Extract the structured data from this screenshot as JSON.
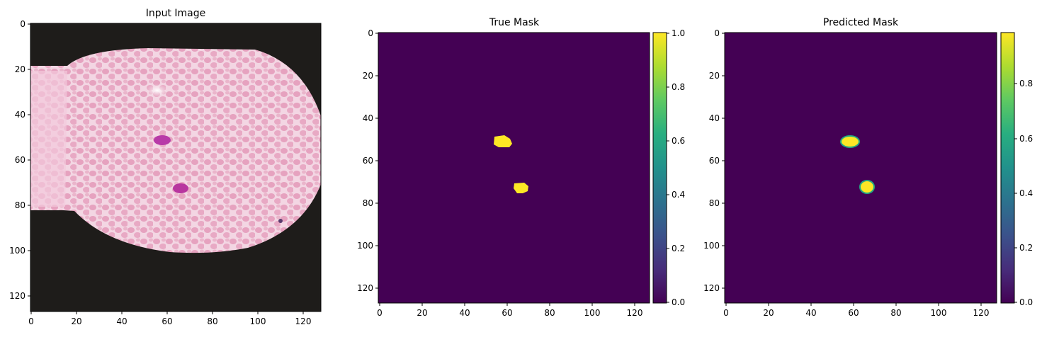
{
  "panels": [
    {
      "title": "Input Image",
      "x_ticks": [
        "0",
        "20",
        "40",
        "60",
        "80",
        "100",
        "120"
      ],
      "y_ticks": [
        "0",
        "20",
        "40",
        "60",
        "80",
        "100",
        "120"
      ]
    },
    {
      "title": "True Mask",
      "x_ticks": [
        "0",
        "20",
        "40",
        "60",
        "80",
        "100",
        "120"
      ],
      "y_ticks": [
        "0",
        "20",
        "40",
        "60",
        "80",
        "100",
        "120"
      ],
      "colorbar_ticks": [
        "1.0",
        "0.8",
        "0.6",
        "0.4",
        "0.2",
        "0.0"
      ]
    },
    {
      "title": "Predicted Mask",
      "x_ticks": [
        "0",
        "20",
        "40",
        "60",
        "80",
        "100",
        "120"
      ],
      "y_ticks": [
        "0",
        "20",
        "40",
        "60",
        "80",
        "100",
        "120"
      ],
      "colorbar_ticks": [
        "0.8",
        "0.6",
        "0.4",
        "0.2",
        "0.0"
      ]
    }
  ],
  "colors": {
    "mask_background": "#440154",
    "mask_foreground": "#fde725",
    "mask_edge": "#22a884"
  }
}
